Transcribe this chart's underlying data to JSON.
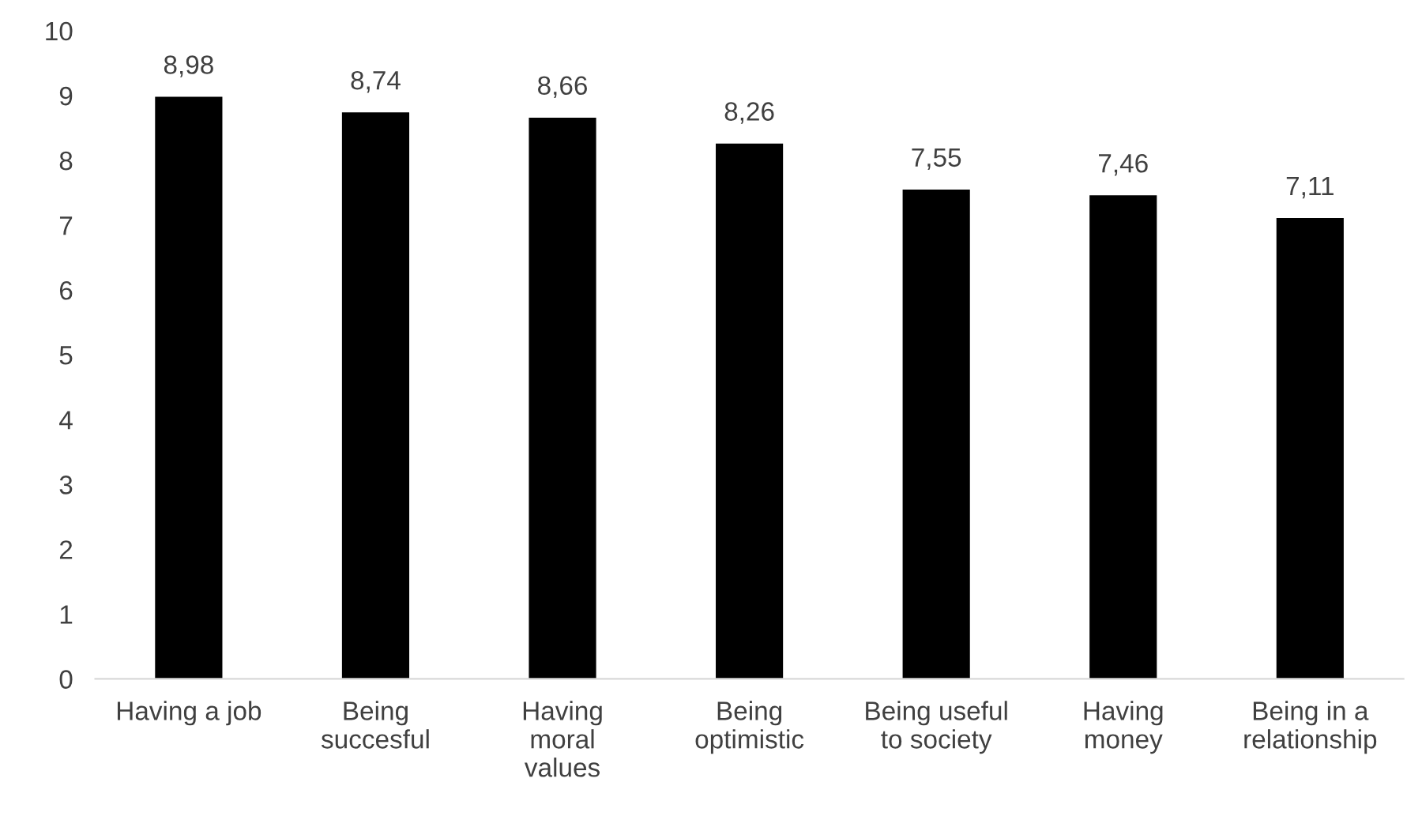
{
  "chart_data": {
    "type": "bar",
    "categories": [
      "Having a job",
      "Being\nsuccesful",
      "Having\nmoral\nvalues",
      "Being\noptimistic",
      "Being useful\nto society",
      "Having\nmoney",
      "Being in a\nrelationship"
    ],
    "values": [
      8.98,
      8.74,
      8.66,
      8.26,
      7.55,
      7.46,
      7.11
    ],
    "value_labels": [
      "8,98",
      "8,74",
      "8,66",
      "8,26",
      "7,55",
      "7,46",
      "7,11"
    ],
    "color": "#000000",
    "ylim": [
      0,
      10
    ],
    "yticks": [
      0,
      1,
      2,
      3,
      4,
      5,
      6,
      7,
      8,
      9,
      10
    ],
    "grid": false
  }
}
